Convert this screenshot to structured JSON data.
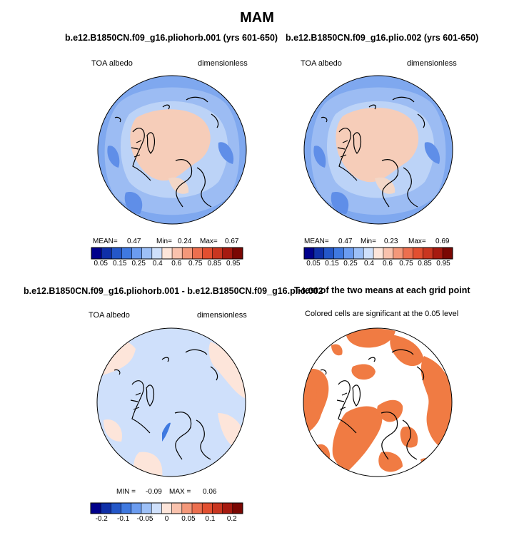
{
  "page": {
    "title": "MAM"
  },
  "panels": [
    {
      "id": "p1",
      "title": "b.e12.B1850CN.f09_g16.pliohorb.001 (yrs 601-650)",
      "left_label": "TOA albedo",
      "right_label": "dimensionless",
      "stats": {
        "mean_label": "MEAN=",
        "mean": "0.47",
        "min_label": "Min=",
        "min": "0.24",
        "max_label": "Max=",
        "max": "0.67"
      }
    },
    {
      "id": "p2",
      "title": "b.e12.B1850CN.f09_g16.plio.002 (yrs 601-650)",
      "left_label": "TOA albedo",
      "right_label": "dimensionless",
      "stats": {
        "mean_label": "MEAN=",
        "mean": "0.47",
        "min_label": "Min=",
        "min": "0.23",
        "max_label": "Max=",
        "max": "0.69"
      }
    },
    {
      "id": "p3",
      "title": "b.e12.B1850CN.f09_g16.pliohorb.001 - b.e12.B1850CN.f09_g16.plio.002",
      "left_label": "TOA albedo",
      "right_label": "dimensionless",
      "stats": {
        "min_label": "MIN =",
        "min": "-0.09",
        "max_label": "MAX =",
        "max": "0.06"
      }
    },
    {
      "id": "p4",
      "title": "T-test of the two means at each grid point",
      "subtitle": "Colored cells are significant at the 0.05 level"
    }
  ],
  "colorbars": {
    "albedo": {
      "colors": [
        "#00008b",
        "#0f2fa8",
        "#2457c8",
        "#3f79e0",
        "#6b9cf0",
        "#9dc0f7",
        "#cfe0fb",
        "#fde5da",
        "#f9c2ad",
        "#f4987a",
        "#ec6f4f",
        "#e24f30",
        "#c93620",
        "#a61a10",
        "#7a0703"
      ],
      "tick_labels": [
        "0.05",
        "0.15",
        "0.25",
        "0.4",
        "0.6",
        "0.75",
        "0.85",
        "0.95"
      ]
    },
    "difference": {
      "colors": [
        "#00008b",
        "#0f2fa8",
        "#2457c8",
        "#3f79e0",
        "#6b9cf0",
        "#9dc0f7",
        "#cfe0fb",
        "#fde5da",
        "#f9c2ad",
        "#f4987a",
        "#ec6f4f",
        "#e24f30",
        "#c93620",
        "#a61a10",
        "#7a0703"
      ],
      "tick_labels": [
        "-0.2",
        "-0.1",
        "-0.05",
        "0",
        "0.05",
        "0.1",
        "0.2"
      ]
    }
  },
  "chart_data": [
    {
      "type": "heatmap",
      "projection": "north polar stereographic",
      "title": "b.e12.B1850CN.f09_g16.pliohorb.001 (yrs 601-650)",
      "variable": "TOA albedo",
      "units": "dimensionless",
      "mean": 0.47,
      "min": 0.24,
      "max": 0.67
    },
    {
      "type": "heatmap",
      "projection": "north polar stereographic",
      "title": "b.e12.B1850CN.f09_g16.plio.002 (yrs 601-650)",
      "variable": "TOA albedo",
      "units": "dimensionless",
      "mean": 0.47,
      "min": 0.23,
      "max": 0.69
    },
    {
      "type": "heatmap",
      "projection": "north polar stereographic",
      "title": "b.e12.B1850CN.f09_g16.pliohorb.001 - b.e12.B1850CN.f09_g16.plio.002",
      "variable": "TOA albedo",
      "units": "dimensionless",
      "min": -0.09,
      "max": 0.06
    },
    {
      "type": "heatmap",
      "projection": "north polar stereographic",
      "title": "T-test of the two means at each grid point",
      "note": "Colored cells are significant at the 0.05 level",
      "significant_color": "#f07b43"
    }
  ]
}
